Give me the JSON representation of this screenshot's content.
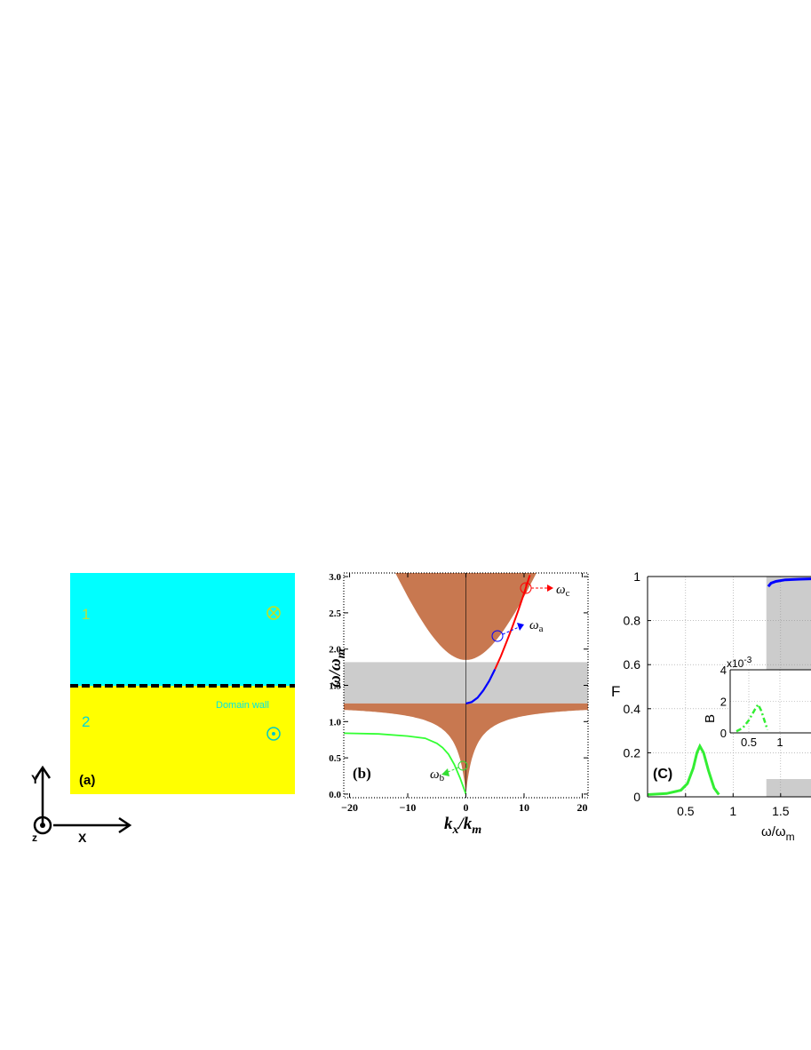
{
  "panel_a": {
    "label": "(a)",
    "region_1": "1",
    "region_2": "2",
    "domain_wall_label": "Domain wall",
    "axis_y": "Y",
    "axis_x": "X",
    "axis_z": "z",
    "colors": {
      "top": "#00ffff",
      "bottom": "#ffff00",
      "label": "#00e5e5",
      "num_top": "#c8e01a",
      "wall": "#000000"
    }
  },
  "panel_b": {
    "label": "(b)",
    "xlabel_k": "k",
    "xlabel_x": "x",
    "xlabel_km": "/k",
    "xlabel_m": "m",
    "ylabel_w": "ω/ω",
    "ylabel_m": "m",
    "annot_c": "ω",
    "annot_c_sub": "c",
    "annot_a": "ω",
    "annot_a_sub": "a",
    "annot_b": "ω",
    "annot_b_sub": "b",
    "colors": {
      "bulk": "#c87850",
      "gap": "#cccccc",
      "red": "#ff0000",
      "blue": "#0000ff",
      "green": "#33ff33"
    }
  },
  "panel_c": {
    "label": "(C)",
    "ylabel": "F",
    "xlabel": "ω/ω",
    "xlabel_sub": "m",
    "inset_ylabel": "B",
    "inset_scale": "x10",
    "inset_scale_exp": "-3"
  },
  "chart_data": [
    {
      "type": "area",
      "panel": "b",
      "xlabel": "k_x/k_m",
      "ylabel": "ω/ω_m",
      "xlim": [
        -21,
        21
      ],
      "ylim": [
        -0.05,
        3.05
      ],
      "xticks": [
        -20,
        -10,
        0,
        10,
        20
      ],
      "xtick_labels": [
        "−20",
        "−10",
        "0",
        "10",
        "20"
      ],
      "yticks": [
        0.0,
        0.5,
        1.0,
        1.5,
        2.0,
        2.5,
        3.0
      ],
      "ytick_labels": [
        "0.0",
        "0.5",
        "1.0",
        "1.5",
        "2.0",
        "2.5",
        "3.0"
      ],
      "gap_band": [
        1.25,
        1.82
      ],
      "series": [
        {
          "x": [
            0,
            1,
            2,
            3,
            4,
            5,
            6,
            7,
            8,
            9,
            10,
            11
          ],
          "y": [
            1.25,
            1.27,
            1.33,
            1.43,
            1.56,
            1.72,
            1.9,
            2.1,
            2.31,
            2.53,
            2.77,
            3.02
          ]
        },
        {
          "x": [
            -21,
            -15,
            -10,
            -7,
            -5,
            -4,
            -3,
            -2,
            -1,
            0
          ],
          "y": [
            0.84,
            0.83,
            0.8,
            0.77,
            0.7,
            0.64,
            0.55,
            0.41,
            0.22,
            0.0
          ]
        }
      ]
    },
    {
      "type": "line",
      "panel": "c",
      "xlabel": "ω/ω_m",
      "ylabel": "F",
      "xlim": [
        0.1,
        2.0
      ],
      "ylim": [
        0,
        1
      ],
      "xticks": [
        0.5,
        1,
        1.5
      ],
      "xtick_labels": [
        "0.5",
        "1",
        "1.5"
      ],
      "yticks": [
        0,
        0.2,
        0.4,
        0.6,
        0.8,
        1
      ],
      "ytick_labels": [
        "0",
        "0.2",
        "0.4",
        "0.6",
        "0.8",
        "1"
      ],
      "gap_band": [
        1.35,
        2.0
      ],
      "series": [
        {
          "x": [
            0.1,
            0.3,
            0.45,
            0.52,
            0.58,
            0.62,
            0.65,
            0.69,
            0.74,
            0.8,
            0.85
          ],
          "y": [
            0.01,
            0.015,
            0.03,
            0.06,
            0.13,
            0.2,
            0.23,
            0.2,
            0.12,
            0.04,
            0.01
          ]
        },
        {
          "x": [
            1.37,
            1.4,
            1.45,
            1.55,
            1.7,
            1.85,
            2.0
          ],
          "y": [
            0.955,
            0.97,
            0.978,
            0.985,
            0.988,
            0.99,
            0.99
          ]
        }
      ]
    },
    {
      "type": "line",
      "panel": "c-inset",
      "ylabel": "B",
      "xlim": [
        0.2,
        1.3
      ],
      "ylim": [
        0,
        4
      ],
      "xticks": [
        0.5,
        1
      ],
      "xtick_labels": [
        "0.5",
        "1"
      ],
      "yticks": [
        0,
        2,
        4
      ],
      "ytick_labels": [
        "0",
        "2",
        "4"
      ],
      "series": [
        {
          "x": [
            0.3,
            0.4,
            0.5,
            0.6,
            0.65,
            0.7,
            0.75,
            0.8
          ],
          "y": [
            0.1,
            0.3,
            0.8,
            1.5,
            1.8,
            1.4,
            0.8,
            0.2
          ]
        }
      ]
    }
  ]
}
